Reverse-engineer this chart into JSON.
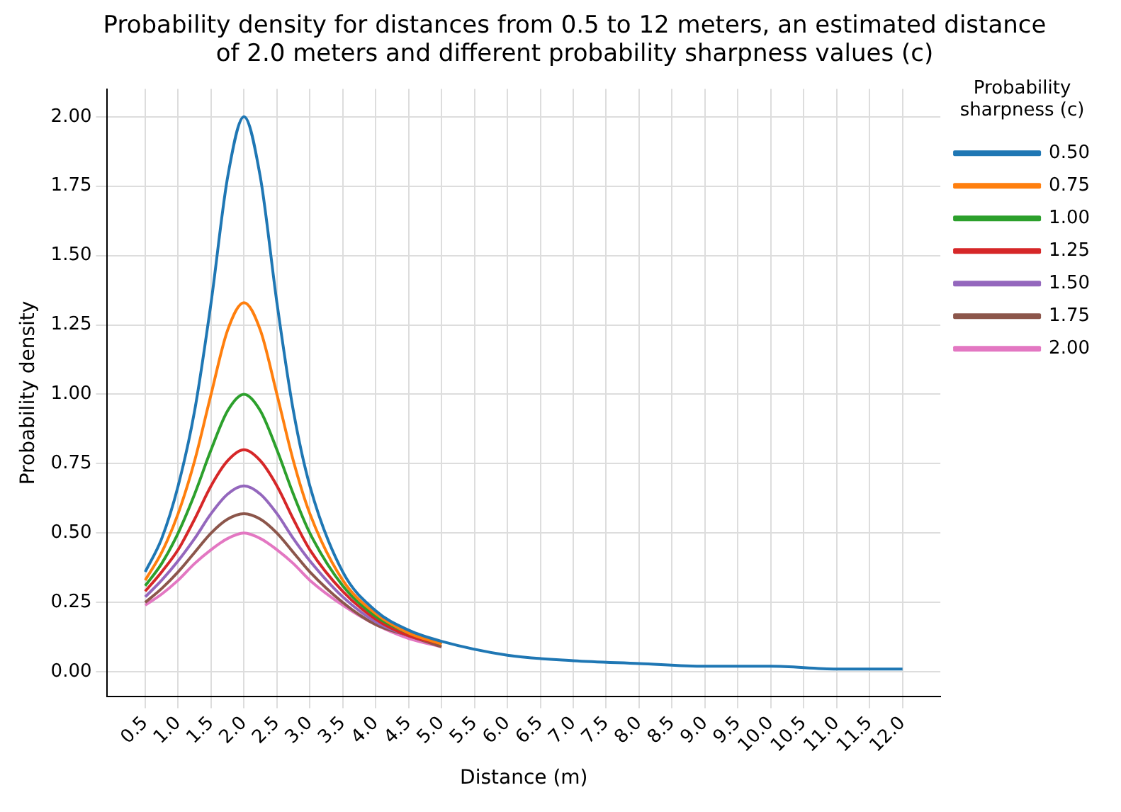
{
  "chart_data": {
    "type": "line",
    "title": "Probability density for distances from 0.5 to 12 meters, an estimated distance of 2.0 meters and different probability sharpness values (c)",
    "xlabel": "Distance (m)",
    "ylabel": "Probability density",
    "legend_title": "Probability sharpness (c)",
    "x": [
      0.5,
      0.75,
      1,
      1.25,
      1.5,
      1.75,
      2,
      2.25,
      2.5,
      2.75,
      3,
      3.5,
      4,
      4.5,
      5,
      6,
      7,
      8,
      9,
      10,
      11,
      12
    ],
    "series": [
      {
        "name": "0.50",
        "color": "#1f77b4",
        "values": [
          0.36,
          0.48,
          0.67,
          0.94,
          1.33,
          1.78,
          2.0,
          1.78,
          1.33,
          0.94,
          0.67,
          0.36,
          0.22,
          0.15,
          0.11,
          0.06,
          0.04,
          0.03,
          0.02,
          0.02,
          0.01,
          0.01
        ]
      },
      {
        "name": "0.75",
        "color": "#ff7f0e",
        "values": [
          0.33,
          0.43,
          0.57,
          0.76,
          1.0,
          1.23,
          1.33,
          1.23,
          1.0,
          0.76,
          0.57,
          0.33,
          0.21,
          0.14,
          0.1,
          null,
          null,
          null,
          null,
          null,
          null,
          null
        ]
      },
      {
        "name": "1.00",
        "color": "#2ca02c",
        "values": [
          0.31,
          0.39,
          0.5,
          0.64,
          0.8,
          0.94,
          1.0,
          0.94,
          0.8,
          0.64,
          0.5,
          0.31,
          0.2,
          0.14,
          0.1,
          null,
          null,
          null,
          null,
          null,
          null,
          null
        ]
      },
      {
        "name": "1.25",
        "color": "#d62728",
        "values": [
          0.29,
          0.36,
          0.44,
          0.55,
          0.67,
          0.76,
          0.8,
          0.76,
          0.67,
          0.55,
          0.44,
          0.29,
          0.19,
          0.13,
          0.1,
          null,
          null,
          null,
          null,
          null,
          null,
          null
        ]
      },
      {
        "name": "1.50",
        "color": "#9467bd",
        "values": [
          0.27,
          0.33,
          0.4,
          0.48,
          0.57,
          0.64,
          0.67,
          0.64,
          0.57,
          0.48,
          0.4,
          0.27,
          0.18,
          0.13,
          0.1,
          null,
          null,
          null,
          null,
          null,
          null,
          null
        ]
      },
      {
        "name": "1.75",
        "color": "#8c564b",
        "values": [
          0.25,
          0.3,
          0.36,
          0.43,
          0.5,
          0.55,
          0.57,
          0.55,
          0.5,
          0.43,
          0.36,
          0.25,
          0.17,
          0.13,
          0.09,
          null,
          null,
          null,
          null,
          null,
          null,
          null
        ]
      },
      {
        "name": "2.00",
        "color": "#e377c2",
        "values": [
          0.24,
          0.28,
          0.33,
          0.39,
          0.44,
          0.48,
          0.5,
          0.48,
          0.44,
          0.39,
          0.33,
          0.24,
          0.17,
          0.12,
          0.09,
          null,
          null,
          null,
          null,
          null,
          null,
          null
        ]
      }
    ],
    "xlim": [
      -0.075,
      12.575
    ],
    "ylim": [
      -0.09,
      2.1
    ],
    "xticks": [
      {
        "value": 0.5,
        "label": "0.5"
      },
      {
        "value": 1,
        "label": "1.0"
      },
      {
        "value": 1.5,
        "label": "1.5"
      },
      {
        "value": 2,
        "label": "2.0"
      },
      {
        "value": 2.5,
        "label": "2.5"
      },
      {
        "value": 3,
        "label": "3.0"
      },
      {
        "value": 3.5,
        "label": "3.5"
      },
      {
        "value": 4,
        "label": "4.0"
      },
      {
        "value": 4.5,
        "label": "4.5"
      },
      {
        "value": 5,
        "label": "5.0"
      },
      {
        "value": 5.5,
        "label": "5.5"
      },
      {
        "value": 6,
        "label": "6.0"
      },
      {
        "value": 6.5,
        "label": "6.5"
      },
      {
        "value": 7,
        "label": "7.0"
      },
      {
        "value": 7.5,
        "label": "7.5"
      },
      {
        "value": 8,
        "label": "8.0"
      },
      {
        "value": 8.5,
        "label": "8.5"
      },
      {
        "value": 9,
        "label": "9.0"
      },
      {
        "value": 9.5,
        "label": "9.5"
      },
      {
        "value": 10,
        "label": "10.0"
      },
      {
        "value": 10.5,
        "label": "10.5"
      },
      {
        "value": 11,
        "label": "11.0"
      },
      {
        "value": 11.5,
        "label": "11.5"
      },
      {
        "value": 12,
        "label": "12.0"
      }
    ],
    "yticks": [
      {
        "value": 0,
        "label": "0.00"
      },
      {
        "value": 0.25,
        "label": "0.25"
      },
      {
        "value": 0.5,
        "label": "0.50"
      },
      {
        "value": 0.75,
        "label": "0.75"
      },
      {
        "value": 1,
        "label": "1.00"
      },
      {
        "value": 1.25,
        "label": "1.25"
      },
      {
        "value": 1.5,
        "label": "1.50"
      },
      {
        "value": 1.75,
        "label": "1.75"
      },
      {
        "value": 2,
        "label": "2.00"
      }
    ],
    "grid": true,
    "legend": "top right"
  }
}
